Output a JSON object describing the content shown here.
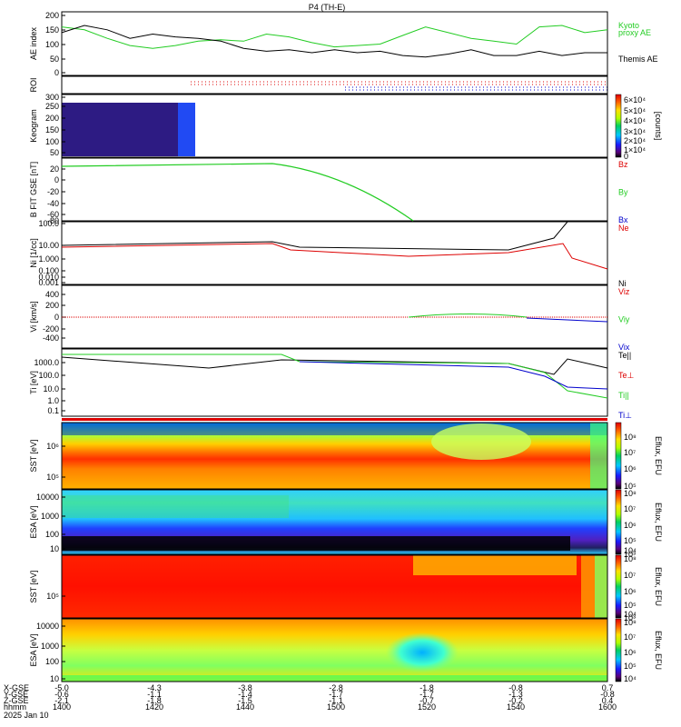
{
  "title": "P4 (TH-E)",
  "chart_data": {
    "type": "line",
    "x_tick_labels": [
      "1400",
      "1420",
      "1440",
      "1500",
      "1520",
      "1540",
      "1600"
    ],
    "x_rows": {
      "X-GSE": [
        "-5.0",
        "-4.3",
        "-3.8",
        "-2.8",
        "-1.8",
        "-0.8",
        "0.7"
      ],
      "Y-GSE": [
        "-0.6",
        "-1.1",
        "-1.4",
        "-1.7",
        "-1.7",
        "-1.3",
        "-0.8"
      ],
      "Z-GSE": [
        "-2.1",
        "-1.8",
        "-1.5",
        "-1.1",
        "-0.7",
        "-0.2",
        "0.4"
      ]
    },
    "x_row_labels": [
      "X-GSE",
      "Y-GSE",
      "Z-GSE",
      "hhmm"
    ],
    "date_label": "2025 Jan 10",
    "panels": [
      {
        "id": "ae",
        "ylabel": "AE index",
        "yticks": [
          "200",
          "150",
          "100",
          "50",
          "0"
        ],
        "series": [
          {
            "name": "Kyoto proxy AE",
            "color": "#22cc22",
            "values": [
              160,
              150,
              120,
              95,
              85,
              95,
              110,
              115,
              110,
              135,
              125,
              105,
              90,
              95,
              100,
              130,
              160,
              140,
              120,
              110,
              100,
              160,
              165,
              140,
              150
            ]
          },
          {
            "name": "Themis AE",
            "color": "#000000",
            "values": [
              140,
              165,
              150,
              120,
              135,
              125,
              120,
              110,
              85,
              75,
              80,
              70,
              80,
              70,
              75,
              60,
              55,
              65,
              80,
              60,
              60,
              75,
              60,
              70,
              70
            ]
          }
        ],
        "legend_lines": [
          [
            "Kyoto",
            "proxy AE"
          ],
          [
            "Themis AE"
          ]
        ]
      },
      {
        "id": "roi",
        "ylabel": "ROI",
        "yticks": []
      },
      {
        "id": "keogram",
        "ylabel": "Keogram",
        "yticks": [
          "300",
          "250",
          "200",
          "150",
          "100",
          "50"
        ],
        "colorbar": {
          "ticks": [
            "6×10⁴",
            "5×10⁴",
            "4×10⁴",
            "3×10⁴",
            "2×10⁴",
            "1×10⁴",
            "0"
          ],
          "label": "[counts]"
        }
      },
      {
        "id": "bfit",
        "ylabel": "B FIT GSE [nT]",
        "yticks": [
          "20",
          "0",
          "-20",
          "-40",
          "-60",
          "-80",
          "-100"
        ],
        "legend": [
          {
            "label": "Bz",
            "color": "#dd0000"
          },
          {
            "label": "By",
            "color": "#22cc22"
          },
          {
            "label": "Bx",
            "color": "#0000cc"
          }
        ]
      },
      {
        "id": "ni",
        "ylabel": "Ni [1/cc]",
        "yticks": [
          "100.0",
          "10.00",
          "1.000",
          "0.100",
          "0.010",
          "0.001"
        ],
        "legend": [
          {
            "label": "Ne",
            "color": "#dd0000"
          },
          {
            "label": "Ni",
            "color": "#000000"
          }
        ]
      },
      {
        "id": "vi",
        "ylabel": "Vi [km/s]",
        "yticks": [
          "400",
          "200",
          "0",
          "-200",
          "-400"
        ],
        "legend": [
          {
            "label": "Viz",
            "color": "#dd0000"
          },
          {
            "label": "Viy",
            "color": "#22cc22"
          },
          {
            "label": "Vix",
            "color": "#0000cc"
          }
        ]
      },
      {
        "id": "ti",
        "ylabel": "Ti [eV]",
        "yticks": [
          "1000.0",
          "100.0",
          "10.0",
          "1.0",
          "0.1"
        ],
        "legend": [
          {
            "label": "Te||",
            "color": "#000000"
          },
          {
            "label": "Te⊥",
            "color": "#dd0000"
          },
          {
            "label": "Ti||",
            "color": "#22cc22"
          },
          {
            "label": "Ti⊥",
            "color": "#0000cc"
          }
        ]
      },
      {
        "id": "sst_e",
        "ylabel": "SST [eV]",
        "yticks": [
          "10⁶",
          "10⁵"
        ],
        "colorbar": {
          "ticks": [
            "10⁸",
            "10⁷",
            "10⁶",
            "10⁵"
          ],
          "label": "Eflux, EFU"
        }
      },
      {
        "id": "esa_e",
        "ylabel": "ESA [eV]",
        "yticks": [
          "10000",
          "1000",
          "100",
          "10"
        ],
        "colorbar": {
          "ticks": [
            "10⁸",
            "10⁷",
            "10⁶",
            "10⁵",
            "10⁴",
            "10³"
          ],
          "label": "Eflux, EFU"
        }
      },
      {
        "id": "sst_i",
        "ylabel": "SST [eV]",
        "yticks": [
          "10⁵"
        ],
        "colorbar": {
          "ticks": [
            "10⁸",
            "10⁷",
            "10⁶",
            "10⁵",
            "10⁴",
            "10³"
          ],
          "label": "Eflux, EFU"
        }
      },
      {
        "id": "esa_i",
        "ylabel": "ESA [eV]",
        "yticks": [
          "10000",
          "1000",
          "100",
          "10"
        ],
        "colorbar": {
          "ticks": [
            "10⁸",
            "10⁷",
            "10⁶",
            "10⁵",
            "10⁴"
          ],
          "label": "Eflux, EFU"
        }
      }
    ]
  }
}
